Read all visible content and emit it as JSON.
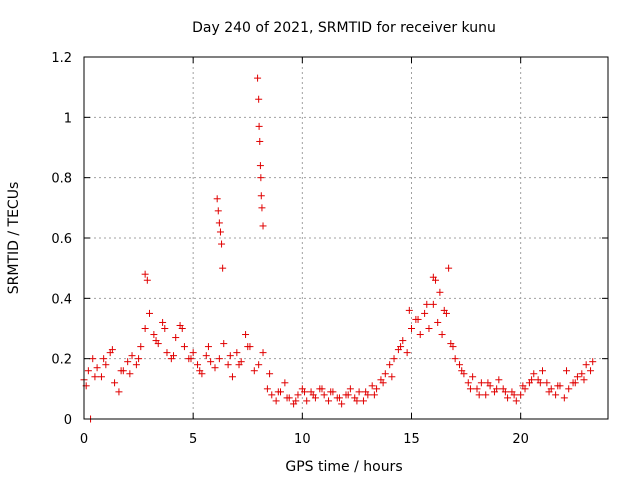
{
  "chart_data": {
    "type": "scatter",
    "title": "Day 240 of 2021, SRMTID for receiver kunu",
    "xlabel": "GPS time / hours",
    "ylabel": "SRMTID / TECUs",
    "xlim": [
      0,
      24
    ],
    "ylim": [
      0,
      1.2
    ],
    "x_ticks": [
      0,
      5,
      10,
      15,
      20
    ],
    "y_ticks": [
      0,
      0.2,
      0.4,
      0.6,
      0.8,
      1.0,
      1.2
    ],
    "x_tick_labels": [
      "0",
      "5",
      "10",
      "15",
      "20"
    ],
    "y_tick_labels": [
      "0",
      "0.2",
      "0.4",
      "0.6",
      "0.8",
      "1",
      "1.2"
    ],
    "grid": true,
    "marker": "+",
    "color": "#e00000",
    "series": [
      {
        "name": "kunu",
        "x": [
          0.0,
          0.2,
          0.4,
          0.6,
          0.8,
          1.0,
          1.2,
          1.4,
          1.6,
          1.8,
          2.0,
          2.2,
          2.4,
          2.6,
          2.8,
          3.0,
          3.2,
          3.4,
          3.6,
          3.8,
          4.0,
          4.2,
          4.4,
          4.6,
          4.8,
          5.0,
          5.2,
          5.4,
          5.6,
          5.8,
          6.0,
          6.2,
          6.4,
          6.6,
          6.8,
          7.0,
          7.2,
          7.4,
          7.6,
          7.8,
          8.0,
          8.2,
          8.4,
          8.6,
          8.8,
          9.0,
          9.2,
          9.4,
          9.6,
          9.8,
          10.0,
          10.2,
          10.4,
          10.6,
          10.8,
          11.0,
          11.2,
          11.4,
          11.6,
          11.8,
          12.0,
          12.2,
          12.4,
          12.6,
          12.8,
          13.0,
          13.2,
          13.4,
          13.6,
          13.8,
          14.0,
          14.2,
          14.4,
          14.6,
          14.8,
          15.0,
          15.2,
          15.4,
          15.6,
          15.8,
          16.0,
          16.2,
          16.4,
          16.6,
          16.8,
          17.0,
          17.2,
          17.4,
          17.6,
          17.8,
          18.0,
          18.2,
          18.4,
          18.6,
          18.8,
          19.0,
          19.2,
          19.4,
          19.6,
          19.8,
          20.0,
          20.2,
          20.4,
          20.6,
          20.8,
          21.0,
          21.2,
          21.4,
          21.6,
          21.8,
          22.0,
          22.2,
          22.4,
          22.6,
          22.8,
          23.0,
          23.2,
          0.3,
          2.8,
          2.9,
          6.1,
          6.15,
          6.2,
          6.25,
          6.3,
          6.35,
          7.95,
          8.0,
          8.02,
          8.05,
          8.08,
          8.1,
          8.12,
          8.15,
          8.2,
          16.0,
          16.1,
          16.3,
          16.7,
          0.1,
          0.5,
          0.9,
          1.3,
          1.7,
          2.1,
          2.5,
          3.3,
          3.7,
          4.1,
          4.5,
          4.9,
          5.3,
          5.7,
          6.7,
          7.1,
          7.5,
          8.5,
          8.9,
          9.3,
          9.7,
          10.1,
          10.5,
          10.9,
          11.3,
          11.7,
          12.1,
          12.5,
          12.9,
          13.3,
          13.7,
          14.1,
          14.5,
          14.9,
          15.3,
          15.7,
          16.5,
          16.9,
          17.3,
          17.7,
          18.1,
          18.5,
          18.9,
          19.3,
          19.7,
          20.1,
          20.5,
          20.9,
          21.3,
          21.7,
          22.1,
          22.5,
          22.9,
          23.3
        ],
        "y": [
          0.13,
          0.16,
          0.2,
          0.17,
          0.14,
          0.18,
          0.22,
          0.12,
          0.09,
          0.16,
          0.19,
          0.21,
          0.18,
          0.24,
          0.3,
          0.35,
          0.28,
          0.25,
          0.32,
          0.22,
          0.2,
          0.27,
          0.31,
          0.24,
          0.2,
          0.22,
          0.18,
          0.15,
          0.21,
          0.19,
          0.17,
          0.2,
          0.25,
          0.18,
          0.14,
          0.22,
          0.19,
          0.28,
          0.24,
          0.16,
          0.18,
          0.22,
          0.1,
          0.08,
          0.06,
          0.09,
          0.12,
          0.07,
          0.05,
          0.08,
          0.1,
          0.06,
          0.09,
          0.07,
          0.1,
          0.08,
          0.06,
          0.09,
          0.07,
          0.05,
          0.08,
          0.1,
          0.07,
          0.09,
          0.06,
          0.08,
          0.11,
          0.1,
          0.13,
          0.15,
          0.18,
          0.2,
          0.23,
          0.26,
          0.22,
          0.3,
          0.33,
          0.28,
          0.35,
          0.3,
          0.38,
          0.32,
          0.28,
          0.35,
          0.25,
          0.2,
          0.18,
          0.15,
          0.12,
          0.14,
          0.1,
          0.12,
          0.08,
          0.11,
          0.09,
          0.13,
          0.1,
          0.07,
          0.09,
          0.06,
          0.08,
          0.1,
          0.12,
          0.15,
          0.13,
          0.16,
          0.12,
          0.1,
          0.08,
          0.11,
          0.07,
          0.1,
          0.12,
          0.14,
          0.15,
          0.18,
          0.16,
          0.0,
          0.48,
          0.46,
          0.73,
          0.69,
          0.65,
          0.62,
          0.58,
          0.5,
          1.13,
          1.06,
          0.97,
          0.92,
          0.84,
          0.8,
          0.74,
          0.7,
          0.64,
          0.47,
          0.46,
          0.42,
          0.5,
          0.11,
          0.14,
          0.2,
          0.23,
          0.16,
          0.15,
          0.2,
          0.26,
          0.3,
          0.21,
          0.3,
          0.2,
          0.16,
          0.24,
          0.21,
          0.18,
          0.24,
          0.15,
          0.09,
          0.07,
          0.06,
          0.09,
          0.08,
          0.1,
          0.09,
          0.07,
          0.08,
          0.06,
          0.09,
          0.08,
          0.12,
          0.14,
          0.24,
          0.36,
          0.33,
          0.38,
          0.36,
          0.24,
          0.16,
          0.1,
          0.08,
          0.12,
          0.1,
          0.09,
          0.08,
          0.11,
          0.13,
          0.12,
          0.09,
          0.11,
          0.16,
          0.12,
          0.13,
          0.19
        ]
      }
    ]
  }
}
